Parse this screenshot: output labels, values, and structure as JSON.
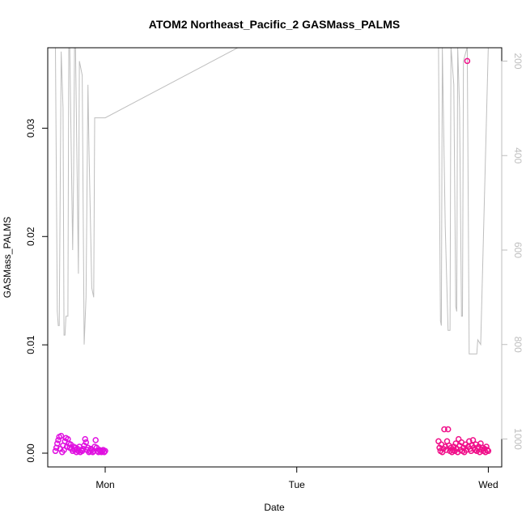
{
  "chart_data": {
    "type": "scatter",
    "title": "ATOM2 Northeast_Pacific_2 GASMass_PALMS",
    "xlabel": "Date",
    "ylabel": "GASMass_PALMS",
    "x_ticks": [
      "Mon",
      "Tue",
      "Wed"
    ],
    "ylim": [
      0,
      0.0375
    ],
    "y_ticks": [
      "0.00",
      "0.01",
      "0.02",
      "0.03"
    ],
    "y2_axis": {
      "label": "",
      "ticks": [
        "200",
        "400",
        "600",
        "800",
        "1000"
      ],
      "range": [
        1030,
        170
      ],
      "color": "#bebebe"
    },
    "series": [
      {
        "name": "",
        "type": "scatter",
        "colors": [
          "#e010e0",
          "#f0108a"
        ],
        "points": [
          {
            "x": -0.26,
            "y": 0.0002
          },
          {
            "x": -0.255,
            "y": 0.0005
          },
          {
            "x": -0.25,
            "y": 0.0009
          },
          {
            "x": -0.245,
            "y": 0.0012
          },
          {
            "x": -0.24,
            "y": 0.0015
          },
          {
            "x": -0.235,
            "y": 0.0004
          },
          {
            "x": -0.23,
            "y": 0.0016
          },
          {
            "x": -0.225,
            "y": 0.0001
          },
          {
            "x": -0.22,
            "y": 0.0007
          },
          {
            "x": -0.215,
            "y": 0.0003
          },
          {
            "x": -0.21,
            "y": 0.0011
          },
          {
            "x": -0.205,
            "y": 0.0014
          },
          {
            "x": -0.2,
            "y": 0.0006
          },
          {
            "x": -0.195,
            "y": 0.0013
          },
          {
            "x": -0.19,
            "y": 0.0009
          },
          {
            "x": -0.185,
            "y": 0.0005
          },
          {
            "x": -0.18,
            "y": 0.0008
          },
          {
            "x": -0.175,
            "y": 0.0004
          },
          {
            "x": -0.17,
            "y": 0.0002
          },
          {
            "x": -0.165,
            "y": 0.0006
          },
          {
            "x": -0.16,
            "y": 0.0003
          },
          {
            "x": -0.155,
            "y": 0.0005
          },
          {
            "x": -0.15,
            "y": 0.0001
          },
          {
            "x": -0.145,
            "y": 0.0004
          },
          {
            "x": -0.14,
            "y": 0.0002
          },
          {
            "x": -0.135,
            "y": 0.0006
          },
          {
            "x": -0.13,
            "y": 0.0001
          },
          {
            "x": -0.125,
            "y": 0.0003
          },
          {
            "x": -0.12,
            "y": 0.0002
          },
          {
            "x": -0.115,
            "y": 0.0004
          },
          {
            "x": -0.11,
            "y": 0.0007
          },
          {
            "x": -0.105,
            "y": 0.0013
          },
          {
            "x": -0.1,
            "y": 0.001
          },
          {
            "x": -0.095,
            "y": 0.0003
          },
          {
            "x": -0.09,
            "y": 0.0005
          },
          {
            "x": -0.085,
            "y": 0.0001
          },
          {
            "x": -0.08,
            "y": 0.0002
          },
          {
            "x": -0.075,
            "y": 0.0004
          },
          {
            "x": -0.07,
            "y": 0.0003
          },
          {
            "x": -0.065,
            "y": 0.0001
          },
          {
            "x": -0.06,
            "y": 0.0002
          },
          {
            "x": -0.055,
            "y": 0.0006
          },
          {
            "x": -0.05,
            "y": 0.0012
          },
          {
            "x": -0.045,
            "y": 0.0005
          },
          {
            "x": -0.04,
            "y": 0.0002
          },
          {
            "x": -0.035,
            "y": 0.0001
          },
          {
            "x": -0.03,
            "y": 0.0003
          },
          {
            "x": -0.025,
            "y": 0.0002
          },
          {
            "x": -0.02,
            "y": 0.0001
          },
          {
            "x": -0.015,
            "y": 0.0002
          },
          {
            "x": -0.01,
            "y": 0.0003
          },
          {
            "x": -0.005,
            "y": 0.0001
          },
          {
            "x": 0.0,
            "y": 0.0002
          },
          {
            "x": 1.74,
            "y": 0.0011
          },
          {
            "x": 1.745,
            "y": 0.0005
          },
          {
            "x": 1.75,
            "y": 0.0002
          },
          {
            "x": 1.755,
            "y": 0.0008
          },
          {
            "x": 1.76,
            "y": 0.0001
          },
          {
            "x": 1.765,
            "y": 0.0004
          },
          {
            "x": 1.77,
            "y": 0.0022
          },
          {
            "x": 1.775,
            "y": 0.0006
          },
          {
            "x": 1.78,
            "y": 0.0003
          },
          {
            "x": 1.785,
            "y": 0.0011
          },
          {
            "x": 1.79,
            "y": 0.0022
          },
          {
            "x": 1.795,
            "y": 0.0007
          },
          {
            "x": 1.8,
            "y": 0.0002
          },
          {
            "x": 1.805,
            "y": 0.0005
          },
          {
            "x": 1.81,
            "y": 0.0001
          },
          {
            "x": 1.815,
            "y": 0.0003
          },
          {
            "x": 1.82,
            "y": 0.0006
          },
          {
            "x": 1.825,
            "y": 0.0002
          },
          {
            "x": 1.83,
            "y": 0.0009
          },
          {
            "x": 1.835,
            "y": 0.0004
          },
          {
            "x": 1.84,
            "y": 0.0001
          },
          {
            "x": 1.845,
            "y": 0.0013
          },
          {
            "x": 1.85,
            "y": 0.0007
          },
          {
            "x": 1.855,
            "y": 0.0003
          },
          {
            "x": 1.86,
            "y": 0.001
          },
          {
            "x": 1.865,
            "y": 0.0002
          },
          {
            "x": 1.87,
            "y": 0.0005
          },
          {
            "x": 1.875,
            "y": 0.0001
          },
          {
            "x": 1.88,
            "y": 0.0008
          },
          {
            "x": 1.885,
            "y": 0.0003
          },
          {
            "x": 1.89,
            "y": 0.0362
          },
          {
            "x": 1.895,
            "y": 0.0006
          },
          {
            "x": 1.9,
            "y": 0.0011
          },
          {
            "x": 1.905,
            "y": 0.0004
          },
          {
            "x": 1.91,
            "y": 0.0002
          },
          {
            "x": 1.915,
            "y": 0.0007
          },
          {
            "x": 1.92,
            "y": 0.0012
          },
          {
            "x": 1.925,
            "y": 0.0005
          },
          {
            "x": 1.93,
            "y": 0.0003
          },
          {
            "x": 1.935,
            "y": 0.0008
          },
          {
            "x": 1.94,
            "y": 0.0002
          },
          {
            "x": 1.945,
            "y": 0.0004
          },
          {
            "x": 1.95,
            "y": 0.0006
          },
          {
            "x": 1.955,
            "y": 0.0001
          },
          {
            "x": 1.96,
            "y": 0.0009
          },
          {
            "x": 1.965,
            "y": 0.0003
          },
          {
            "x": 1.97,
            "y": 0.0005
          },
          {
            "x": 1.975,
            "y": 0.0002
          },
          {
            "x": 1.98,
            "y": 0.0004
          },
          {
            "x": 1.985,
            "y": 0.0001
          },
          {
            "x": 1.99,
            "y": 0.0006
          },
          {
            "x": 1.995,
            "y": 0.0003
          },
          {
            "x": 2.0,
            "y": 0.0002
          }
        ]
      },
      {
        "name": "",
        "type": "line",
        "axis": "right",
        "color": "#bebebe",
        "points": [
          {
            "x": -0.26,
            "y": 170
          },
          {
            "x": -0.25,
            "y": 730
          },
          {
            "x": -0.245,
            "y": 760
          },
          {
            "x": -0.24,
            "y": 760
          },
          {
            "x": -0.23,
            "y": 180
          },
          {
            "x": -0.22,
            "y": 300
          },
          {
            "x": -0.215,
            "y": 780
          },
          {
            "x": -0.21,
            "y": 780
          },
          {
            "x": -0.205,
            "y": 740
          },
          {
            "x": -0.195,
            "y": 740
          },
          {
            "x": -0.19,
            "y": 170
          },
          {
            "x": -0.185,
            "y": 170
          },
          {
            "x": -0.17,
            "y": 600
          },
          {
            "x": -0.165,
            "y": 440
          },
          {
            "x": -0.16,
            "y": 170
          },
          {
            "x": -0.155,
            "y": 170
          },
          {
            "x": -0.14,
            "y": 650
          },
          {
            "x": -0.135,
            "y": 200
          },
          {
            "x": -0.12,
            "y": 230
          },
          {
            "x": -0.11,
            "y": 800
          },
          {
            "x": -0.1,
            "y": 700
          },
          {
            "x": -0.09,
            "y": 250
          },
          {
            "x": -0.085,
            "y": 380
          },
          {
            "x": -0.07,
            "y": 680
          },
          {
            "x": -0.06,
            "y": 700
          },
          {
            "x": -0.055,
            "y": 320
          },
          {
            "x": 0.0,
            "y": 320
          },
          {
            "x": 0.7,
            "y": 170
          },
          {
            "x": 1.74,
            "y": 170
          },
          {
            "x": 1.745,
            "y": 480
          },
          {
            "x": 1.75,
            "y": 750
          },
          {
            "x": 1.755,
            "y": 760
          },
          {
            "x": 1.76,
            "y": 170
          },
          {
            "x": 1.775,
            "y": 550
          },
          {
            "x": 1.79,
            "y": 770
          },
          {
            "x": 1.8,
            "y": 770
          },
          {
            "x": 1.805,
            "y": 170
          },
          {
            "x": 1.82,
            "y": 250
          },
          {
            "x": 1.83,
            "y": 720
          },
          {
            "x": 1.835,
            "y": 730
          },
          {
            "x": 1.84,
            "y": 170
          },
          {
            "x": 1.85,
            "y": 300
          },
          {
            "x": 1.86,
            "y": 740
          },
          {
            "x": 1.865,
            "y": 740
          },
          {
            "x": 1.87,
            "y": 200
          },
          {
            "x": 1.89,
            "y": 170
          },
          {
            "x": 1.9,
            "y": 820
          },
          {
            "x": 1.94,
            "y": 820
          },
          {
            "x": 1.945,
            "y": 790
          },
          {
            "x": 1.96,
            "y": 800
          },
          {
            "x": 2.0,
            "y": 170
          }
        ]
      }
    ],
    "grid": false,
    "legend": "none"
  }
}
